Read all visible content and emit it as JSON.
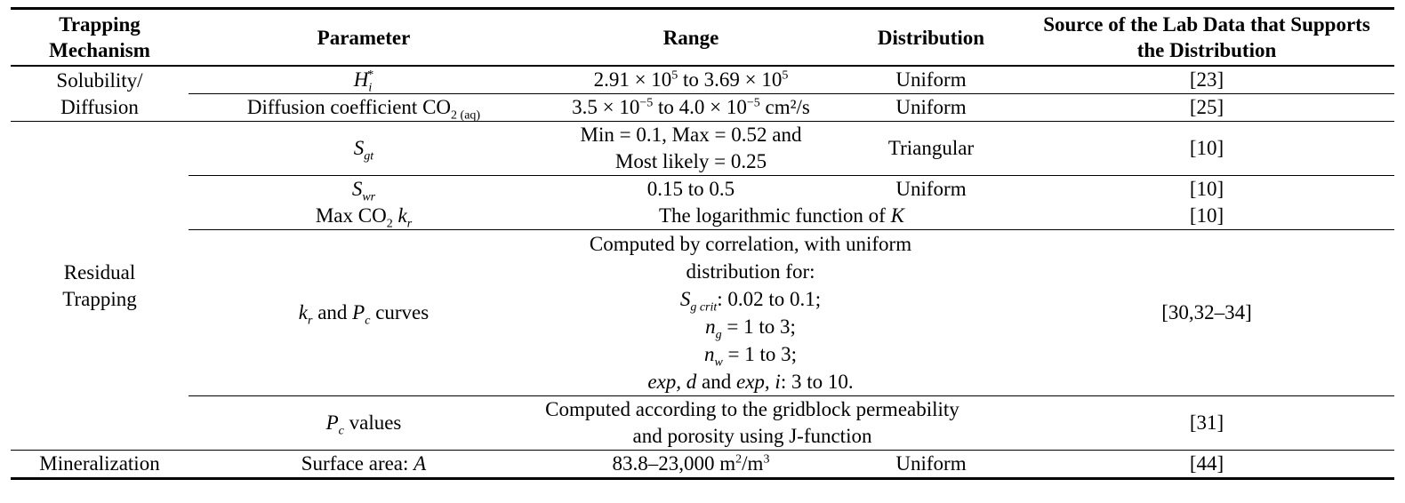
{
  "headers": {
    "mechanism": "Trapping Mechanism",
    "parameter": "Parameter",
    "range": "Range",
    "distribution": "Distribution",
    "source": "Source of the Lab Data that Supports the Distribution"
  },
  "mechanisms": {
    "solubility_line1": "Solubility/",
    "solubility_line2": "Diffusion",
    "residual_line1": "Residual",
    "residual_line2": "Trapping",
    "mineralization": "Mineralization"
  },
  "rows": {
    "henry": {
      "param_sym": "H",
      "param_sub": "i",
      "param_sup": "*",
      "range_a": "2.91 × 10",
      "range_a_exp": "5",
      "range_mid": " to 3.69 × 10",
      "range_b_exp": "5",
      "dist": "Uniform",
      "src": "[23]"
    },
    "diffusion": {
      "param": "Diffusion coefficient CO",
      "param_sub": "2 (aq)",
      "range_a": "3.5 × 10",
      "range_a_exp": "−5",
      "range_mid": " to 4.0 × 10",
      "range_b_exp": "−5",
      "range_unit": " cm²/s",
      "dist": "Uniform",
      "src": "[25]"
    },
    "sgt": {
      "param_sym": "S",
      "param_sub": "gt",
      "range_line1": "Min = 0.1, Max = 0.52 and",
      "range_line2": "Most likely = 0.25",
      "dist": "Triangular",
      "src": "[10]"
    },
    "swr": {
      "param_sym": "S",
      "param_sub": "wr",
      "range": "0.15 to 0.5",
      "dist": "Uniform",
      "src": "[10]"
    },
    "maxkr": {
      "param": "Max CO",
      "param_sub": "2",
      "param_sym": "k",
      "param_sym_sub": "r",
      "range": "The logarithmic function of ",
      "range_sym": "K",
      "src": "[10]"
    },
    "curves": {
      "param_sym1": "k",
      "param_sub1": "r",
      "param_and": " and ",
      "param_sym2": "P",
      "param_sub2": "c",
      "param_tail": " curves",
      "line1": "Computed by correlation, with uniform",
      "line2": "distribution for:",
      "line3_sym": "S",
      "line3_sub": "g crit",
      "line3_tail": ": 0.02 to 0.1;",
      "line4_sym": "n",
      "line4_sub": "g",
      "line4_tail": " = 1 to 3;",
      "line5_sym": "n",
      "line5_sub": "w",
      "line5_tail": " = 1 to 3;",
      "line6_it": "exp, d",
      "line6_mid": " and ",
      "line6_it2": "exp, i",
      "line6_tail": ": 3 to 10.",
      "src": "[30,32–34]"
    },
    "pc": {
      "param_sym": "P",
      "param_sub": "c",
      "param_tail": " values",
      "range_line1": "Computed according to the gridblock permeability",
      "range_line2": "and porosity using J-function",
      "src": "[31]"
    },
    "surface": {
      "param": "Surface area: ",
      "param_sym": "A",
      "range": "83.8–23,000 m",
      "range_sup1": "2",
      "range_mid": "/m",
      "range_sup2": "3",
      "dist": "Uniform",
      "src": "[44]"
    }
  }
}
